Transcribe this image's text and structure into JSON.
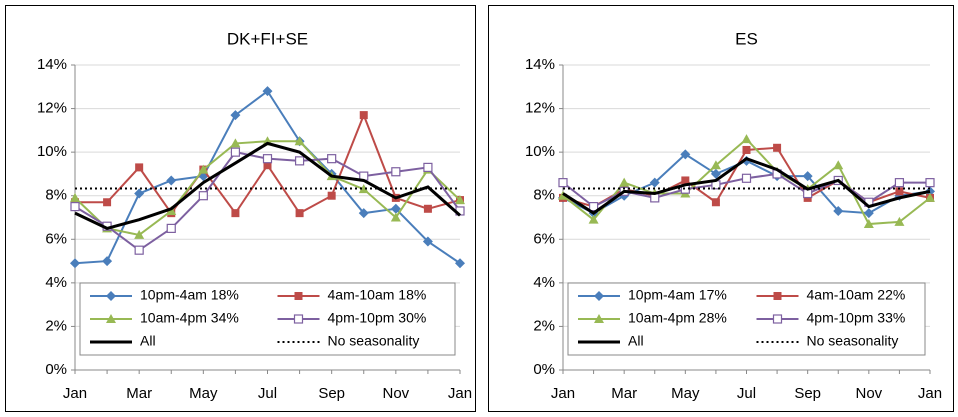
{
  "chart_data": [
    {
      "type": "line",
      "title": "DK+FI+SE",
      "categories": [
        "Jan",
        null,
        "Mar",
        null,
        "May",
        null,
        "Jul",
        null,
        "Sep",
        null,
        "Nov",
        null,
        "Jan"
      ],
      "ylim": [
        0,
        14
      ],
      "yticks": [
        {
          "value": 0,
          "label": "0%"
        },
        {
          "value": 2,
          "label": "2%"
        },
        {
          "value": 4,
          "label": "4%"
        },
        {
          "value": 6,
          "label": "6%"
        },
        {
          "value": 8,
          "label": "8%"
        },
        {
          "value": 10,
          "label": "10%"
        },
        {
          "value": 12,
          "label": "12%"
        },
        {
          "value": 14,
          "label": "14%"
        }
      ],
      "grid": true,
      "legend": "bottom",
      "series": [
        {
          "name": "10pm-4am 18%",
          "color": "#4a7ebb",
          "marker": "diamond",
          "values": [
            4.9,
            5.0,
            8.1,
            8.7,
            8.9,
            11.7,
            12.8,
            10.5,
            9.0,
            7.2,
            7.4,
            5.9,
            4.9
          ]
        },
        {
          "name": "4am-10am 18%",
          "color": "#be4b48",
          "marker": "square",
          "values": [
            7.7,
            7.7,
            9.3,
            7.2,
            9.2,
            7.2,
            9.4,
            7.2,
            8.0,
            11.7,
            7.9,
            7.4,
            7.8
          ]
        },
        {
          "name": "10am-4pm 34%",
          "color": "#98b954",
          "marker": "triangle",
          "values": [
            7.9,
            6.5,
            6.2,
            7.3,
            9.2,
            10.4,
            10.5,
            10.5,
            8.9,
            8.3,
            7.0,
            9.2,
            7.8
          ]
        },
        {
          "name": "4pm-10pm 30%",
          "color": "#7d60a0",
          "marker": "open-square",
          "values": [
            7.5,
            6.6,
            5.5,
            6.5,
            8.0,
            10.0,
            9.7,
            9.6,
            9.7,
            8.9,
            9.1,
            9.3,
            7.3
          ]
        },
        {
          "name": "All",
          "color": "#000000",
          "width": 3,
          "values": [
            7.2,
            6.5,
            6.9,
            7.4,
            8.6,
            9.5,
            10.4,
            10.0,
            8.9,
            8.7,
            7.9,
            8.4,
            7.1
          ]
        },
        {
          "name": "No seasonality",
          "color": "#000000",
          "dash": "dotted",
          "values": [
            8.33,
            8.33,
            8.33,
            8.33,
            8.33,
            8.33,
            8.33,
            8.33,
            8.33,
            8.33,
            8.33,
            8.33,
            8.33
          ]
        }
      ]
    },
    {
      "type": "line",
      "title": "ES",
      "categories": [
        "Jan",
        null,
        "Mar",
        null,
        "May",
        null,
        "Jul",
        null,
        "Sep",
        null,
        "Nov",
        null,
        "Jan"
      ],
      "ylim": [
        0,
        14
      ],
      "yticks": [
        {
          "value": 0,
          "label": "0%"
        },
        {
          "value": 2,
          "label": "2%"
        },
        {
          "value": 4,
          "label": "4%"
        },
        {
          "value": 6,
          "label": "6%"
        },
        {
          "value": 8,
          "label": "8%"
        },
        {
          "value": 10,
          "label": "10%"
        },
        {
          "value": 12,
          "label": "12%"
        },
        {
          "value": 14,
          "label": "14%"
        }
      ],
      "grid": true,
      "legend": "bottom",
      "series": [
        {
          "name": "10pm-4am 17%",
          "color": "#4a7ebb",
          "marker": "diamond",
          "values": [
            7.9,
            7.2,
            8.0,
            8.6,
            9.9,
            9.0,
            9.6,
            8.9,
            8.9,
            7.3,
            7.2,
            8.0,
            8.2
          ]
        },
        {
          "name": "4am-10am 22%",
          "color": "#be4b48",
          "marker": "square",
          "values": [
            7.9,
            7.5,
            8.3,
            8.0,
            8.7,
            7.7,
            10.1,
            10.2,
            7.9,
            8.7,
            7.7,
            8.2,
            7.9
          ]
        },
        {
          "name": "10am-4pm 28%",
          "color": "#98b954",
          "marker": "triangle",
          "values": [
            8.0,
            6.9,
            8.6,
            8.1,
            8.1,
            9.4,
            10.6,
            9.1,
            8.3,
            9.4,
            6.7,
            6.8,
            7.9
          ]
        },
        {
          "name": "4pm-10pm 33%",
          "color": "#7d60a0",
          "marker": "open-square",
          "values": [
            8.6,
            7.5,
            8.2,
            7.9,
            8.3,
            8.5,
            8.8,
            9.0,
            8.1,
            8.7,
            7.7,
            8.6,
            8.6
          ]
        },
        {
          "name": "All",
          "color": "#000000",
          "width": 3,
          "values": [
            8.1,
            7.2,
            8.2,
            8.1,
            8.5,
            8.7,
            9.7,
            9.2,
            8.3,
            8.7,
            7.5,
            7.9,
            8.2
          ]
        },
        {
          "name": "No seasonality",
          "color": "#000000",
          "dash": "dotted",
          "values": [
            8.33,
            8.33,
            8.33,
            8.33,
            8.33,
            8.33,
            8.33,
            8.33,
            8.33,
            8.33,
            8.33,
            8.33,
            8.33
          ]
        }
      ]
    }
  ]
}
